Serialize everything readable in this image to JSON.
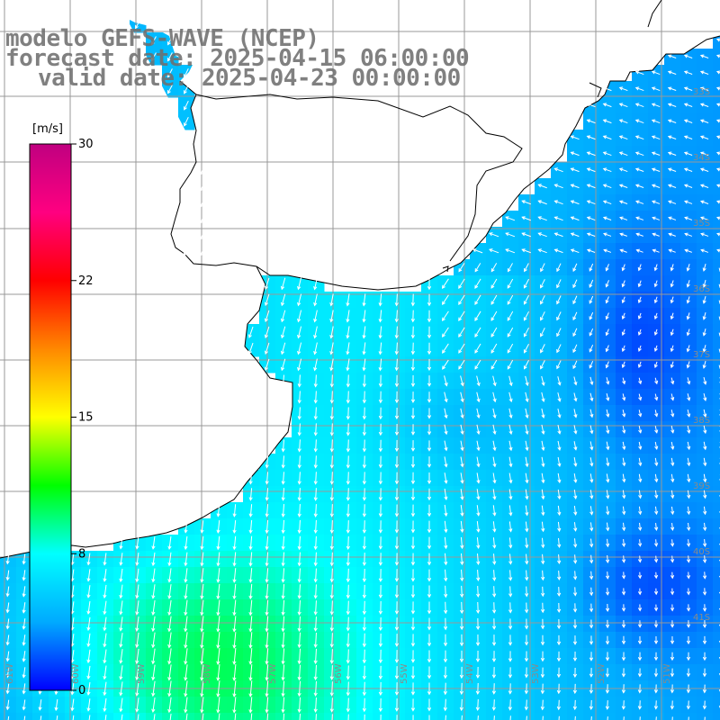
{
  "title": {
    "model": "modelo GEFS-WAVE (NCEP)",
    "forecast": "forecast date: 2025-04-15 06:00:00",
    "valid": "valid date: 2025-04-23 00:00:00"
  },
  "colorbar": {
    "unit": "[m/s]",
    "range": [
      0,
      30
    ],
    "ticks": [
      "30",
      "22",
      "15",
      "8",
      "0"
    ],
    "tick_values": [
      30,
      22.5,
      15,
      7.5,
      0
    ],
    "colors": [
      "#0000ff",
      "#00aaff",
      "#00ffff",
      "#00ff00",
      "#ffff00",
      "#ff8800",
      "#ff0000",
      "#ff0080",
      "#c00080"
    ]
  },
  "map": {
    "lat_labels": [
      "33S",
      "34S",
      "35S",
      "36S",
      "37S",
      "38S",
      "39S",
      "40S",
      "41S"
    ],
    "lon_labels": [
      "61W",
      "60W",
      "59W",
      "58W",
      "57W",
      "56W",
      "55W",
      "54W",
      "53W",
      "52W",
      "51W"
    ],
    "land_color": "#ffffff",
    "grid_color": "#999999",
    "arrow_color": "#ffffff"
  }
}
